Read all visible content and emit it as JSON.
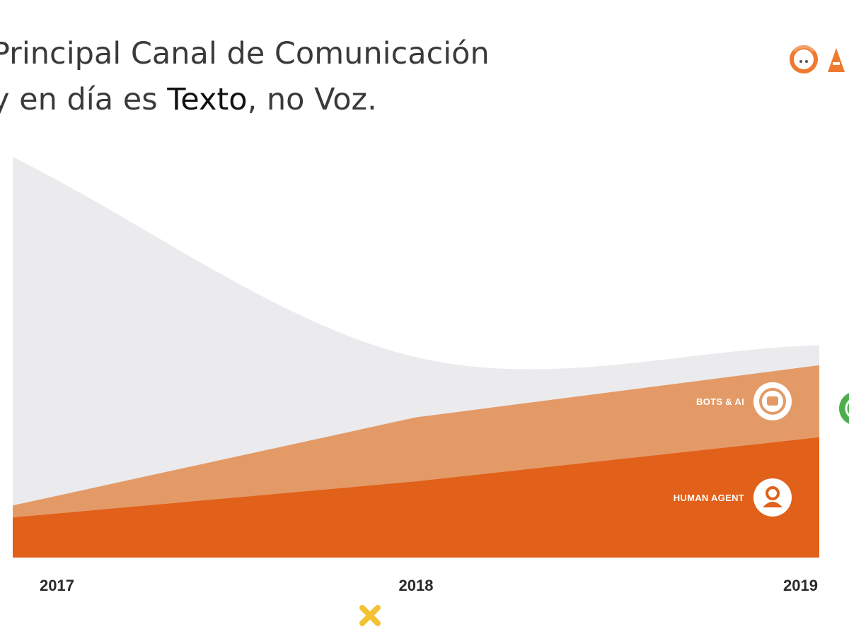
{
  "title": {
    "line1": "Principal Canal de Comunicación",
    "line2_prefix": "y en día es ",
    "line2_emphasis": "Texto",
    "line2_suffix": ", no Voz."
  },
  "colors": {
    "title_text": "#3a3a3a",
    "title_emphasis": "#111111",
    "voice_area": "#ebebee",
    "bots_area": "#e49a67",
    "human_area": "#e1601a",
    "logo_orange": "#ee7a30",
    "whatsapp_green": "#4cae4c",
    "mark_yellow": "#f2c232"
  },
  "icons": {
    "logo": "logo-icon",
    "bots": "robot-icon",
    "human": "person-icon",
    "right_edge": "whatsapp-icon",
    "bottom_mark": "close-icon"
  },
  "chart_data": {
    "type": "area",
    "stacked": true,
    "x": [
      "2017",
      "2018",
      "2019"
    ],
    "series": [
      {
        "name": "HUMAN AGENT",
        "values": [
          10,
          19,
          30
        ]
      },
      {
        "name": "BOTS & AI",
        "values": [
          3,
          16,
          18
        ]
      },
      {
        "name": "",
        "values": [
          87,
          15,
          5
        ]
      }
    ],
    "ylim": [
      0,
      100
    ],
    "grid": false,
    "legend": "inline-right"
  }
}
